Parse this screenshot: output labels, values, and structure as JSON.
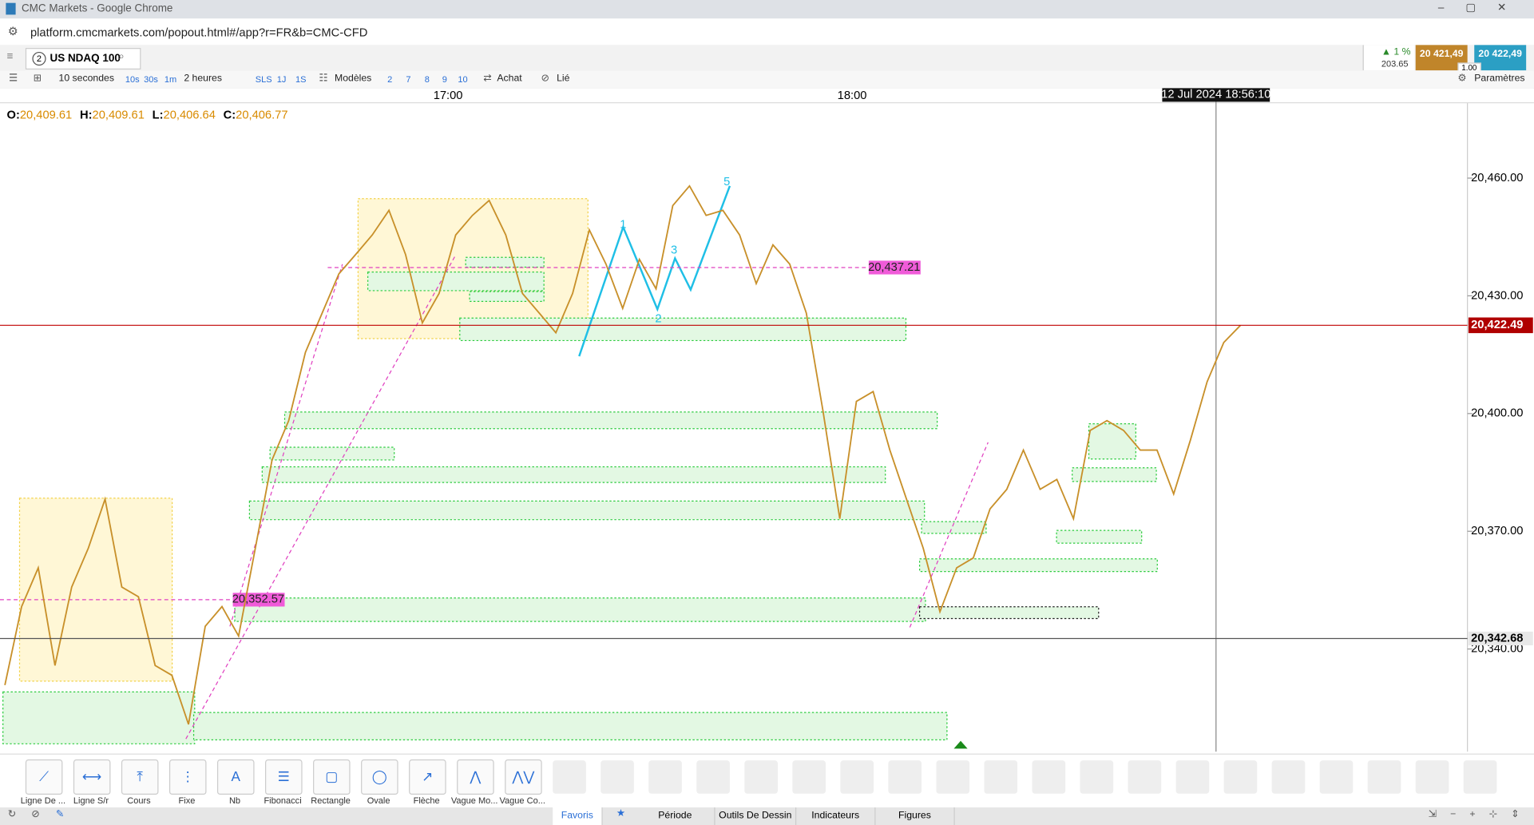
{
  "browser": {
    "title": "CMC Markets - Google Chrome",
    "url": "platform.cmcmarkets.com/popout.html#/app?r=FR&b=CMC-CFD"
  },
  "instrument": {
    "badge": "2",
    "name": "US NDAQ 100",
    "change": "1 %",
    "change_points": "203.65",
    "sell": "20 421,49",
    "buy": "20 422,49",
    "quantity": "1.00"
  },
  "toolbar": {
    "interval": "10 secondes",
    "interval_buttons": [
      "10s",
      "30s",
      "1m"
    ],
    "range": "2 heures",
    "range_buttons": [
      "SLS",
      "1J",
      "1S"
    ],
    "templates": "Modèles",
    "number_buttons": [
      "2",
      "7",
      "8",
      "9",
      "10"
    ],
    "buy": "Achat",
    "link": "Lié",
    "settings": "Paramètres"
  },
  "chart_data": {
    "type": "line",
    "ohlc": [
      {
        "name": "O:",
        "value": {
          "value": 20409.61,
          "label": "20,409.61"
        }
      },
      {
        "name": "H:",
        "value": {
          "value": 20409.61,
          "label": "20,409.61"
        }
      },
      {
        "name": "L:",
        "value": {
          "value": 20406.64,
          "label": "20,406.64"
        }
      },
      {
        "name": "C:",
        "value": {
          "value": 20406.77,
          "label": "20,406.77"
        }
      }
    ],
    "time_labels": [
      "17:00",
      "18:00"
    ],
    "crosshair_time": "12 Jul 2024 18:56:10",
    "color": "#c8902a",
    "values": [
      20330.8,
      20350.8,
      20360.7,
      20335.8,
      20355.8,
      20365.7,
      20378.2,
      20355.8,
      20353.3,
      20335.8,
      20333.3,
      20320.8,
      20345.8,
      20350.8,
      20343.3,
      20365.7,
      20388.2,
      20398.2,
      20415.6,
      20425.6,
      20435.6,
      20440.5,
      20445.5,
      20451.8,
      20440.5,
      20423.1,
      20430.6,
      20445.5,
      20450.5,
      20454.3,
      20445.5,
      20430.6,
      20425.6,
      20420.6,
      20430.6,
      20446.8,
      20438.1,
      20426.8,
      20439.3,
      20431.8,
      20453.0,
      20458.0,
      20450.5,
      20451.8,
      20445.5,
      20433.1,
      20443.0,
      20438.1,
      20425.6,
      20400.6,
      20373.2,
      20403.1,
      20405.6,
      20390.7,
      20378.2,
      20365.7,
      20349.5,
      20360.7,
      20363.2,
      20375.7,
      20380.7,
      20390.7,
      20380.7,
      20383.2,
      20373.2,
      20395.7,
      20398.2,
      20395.7,
      20390.7,
      20390.7,
      20379.5,
      20393.2,
      20408.1,
      20418.1,
      20422.49
    ],
    "ylim": [
      20314.6,
      20479.2
    ],
    "yticks": [
      {
        "value": 20340,
        "label": "20,340.00"
      },
      {
        "value": 20370,
        "label": "20,370.00"
      },
      {
        "value": 20400,
        "label": "20,400.00"
      },
      {
        "value": 20430,
        "label": "20,430.00"
      },
      {
        "value": 20460,
        "label": "20,460.00"
      }
    ],
    "last_price": {
      "value": 20422.49,
      "label": "20,422.49"
    },
    "crosshair_price": {
      "value": 20342.68,
      "label": "20,342.68"
    },
    "levels": [
      {
        "value": 20437.21,
        "label": "20,437.21"
      },
      {
        "value": 20352.57,
        "label": "20,352.57"
      }
    ],
    "wave_labels": [
      "1",
      "2",
      "3",
      "5"
    ]
  },
  "drawing_tools": [
    "Ligne De ...",
    "Ligne S/r",
    "Cours",
    "Fixe",
    "Nb",
    "Fibonacci",
    "Rectangle",
    "Ovale",
    "Flèche",
    "Vague Mo...",
    "Vague Co..."
  ],
  "tabs": [
    "Favoris",
    "Période",
    "Outils De Dessin",
    "Indicateurs",
    "Figures"
  ]
}
